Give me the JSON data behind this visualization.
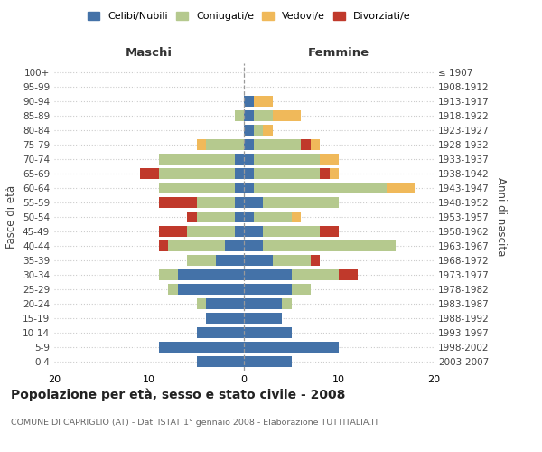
{
  "age_groups": [
    "0-4",
    "5-9",
    "10-14",
    "15-19",
    "20-24",
    "25-29",
    "30-34",
    "35-39",
    "40-44",
    "45-49",
    "50-54",
    "55-59",
    "60-64",
    "65-69",
    "70-74",
    "75-79",
    "80-84",
    "85-89",
    "90-94",
    "95-99",
    "100+"
  ],
  "birth_years": [
    "2003-2007",
    "1998-2002",
    "1993-1997",
    "1988-1992",
    "1983-1987",
    "1978-1982",
    "1973-1977",
    "1968-1972",
    "1963-1967",
    "1958-1962",
    "1953-1957",
    "1948-1952",
    "1943-1947",
    "1938-1942",
    "1933-1937",
    "1928-1932",
    "1923-1927",
    "1918-1922",
    "1913-1917",
    "1908-1912",
    "≤ 1907"
  ],
  "colors": {
    "celibi": "#4472a8",
    "coniugati": "#b5c98e",
    "vedovi": "#f0b95a",
    "divorziati": "#c0392b"
  },
  "maschi": {
    "celibi": [
      5,
      9,
      5,
      4,
      4,
      7,
      7,
      3,
      2,
      1,
      1,
      1,
      1,
      1,
      1,
      0,
      0,
      0,
      0,
      0,
      0
    ],
    "coniugati": [
      0,
      0,
      0,
      0,
      1,
      1,
      2,
      3,
      6,
      5,
      4,
      4,
      8,
      8,
      8,
      4,
      0,
      1,
      0,
      0,
      0
    ],
    "vedovi": [
      0,
      0,
      0,
      0,
      0,
      0,
      0,
      0,
      0,
      0,
      0,
      0,
      0,
      0,
      0,
      1,
      0,
      0,
      0,
      0,
      0
    ],
    "divorziati": [
      0,
      0,
      0,
      0,
      0,
      0,
      0,
      0,
      1,
      3,
      1,
      4,
      0,
      2,
      0,
      0,
      0,
      0,
      0,
      0,
      0
    ]
  },
  "femmine": {
    "celibi": [
      5,
      10,
      5,
      4,
      4,
      5,
      5,
      3,
      2,
      2,
      1,
      2,
      1,
      1,
      1,
      1,
      1,
      1,
      1,
      0,
      0
    ],
    "coniugati": [
      0,
      0,
      0,
      0,
      1,
      2,
      5,
      4,
      14,
      6,
      4,
      8,
      14,
      7,
      7,
      5,
      1,
      2,
      0,
      0,
      0
    ],
    "vedovi": [
      0,
      0,
      0,
      0,
      0,
      0,
      0,
      0,
      0,
      0,
      1,
      0,
      3,
      2,
      2,
      2,
      1,
      3,
      2,
      0,
      0
    ],
    "divorziati": [
      0,
      0,
      0,
      0,
      0,
      0,
      2,
      1,
      0,
      2,
      0,
      0,
      0,
      1,
      0,
      1,
      0,
      0,
      0,
      0,
      0
    ]
  },
  "title": "Popolazione per età, sesso e stato civile - 2008",
  "subtitle": "COMUNE DI CAPRIGLIO (AT) - Dati ISTAT 1° gennaio 2008 - Elaborazione TUTTITALIA.IT",
  "ylabel_left": "Fasce di età",
  "ylabel_right": "Anni di nascita",
  "xlabel_left": "Maschi",
  "xlabel_right": "Femmine",
  "legend_labels": [
    "Celibi/Nubili",
    "Coniugati/e",
    "Vedovi/e",
    "Divorziati/e"
  ],
  "xlim": 20,
  "background_color": "#ffffff",
  "grid_color": "#cccccc"
}
